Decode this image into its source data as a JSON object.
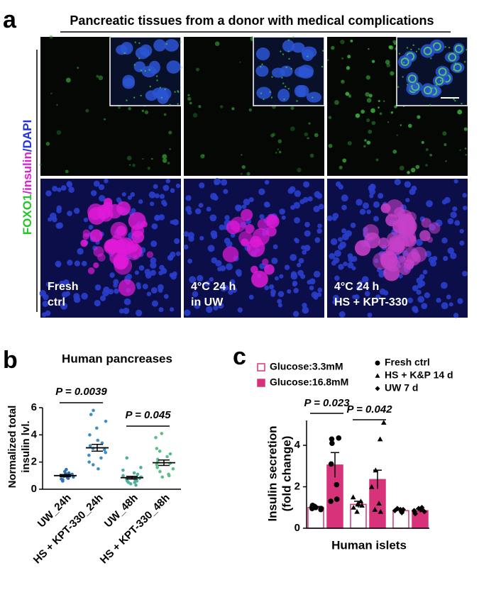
{
  "panel_a": {
    "letter": "a",
    "title": "Pancreatic tissues from a donor with medical complications",
    "stain_label": [
      "FOXO1",
      "/insulin",
      "/DAPI"
    ],
    "image_labels": [
      [
        "Fresh",
        "ctrl"
      ],
      [
        "4°C 24 h",
        "in UW"
      ],
      [
        "4°C 24 h",
        "HS + KPT-330"
      ]
    ]
  },
  "chart_data": [
    {
      "type": "dot",
      "panel": "b",
      "title": "Human pancreases",
      "y_label": [
        "Normalized total",
        "insulin lvl."
      ],
      "categories": [
        "UW_24h",
        "HS + KPT-330_24h",
        "UW_48h",
        "HS + KPT-330_48h"
      ],
      "colors": [
        "#2f6db5",
        "#3d8fc6",
        "#4fb0a0",
        "#5cbf8a"
      ],
      "points": [
        [
          0.6,
          0.7,
          0.8,
          0.85,
          0.9,
          0.95,
          1.0,
          1.0,
          1.05,
          1.1,
          1.15,
          1.2,
          1.3,
          1.45,
          0.75,
          0.9
        ],
        [
          5.8,
          5.5,
          5.0,
          4.5,
          4.0,
          3.6,
          3.4,
          3.2,
          3.0,
          2.9,
          2.7,
          2.5,
          2.3,
          2.0,
          1.8,
          1.5
        ],
        [
          0.3,
          0.4,
          0.5,
          0.6,
          0.7,
          0.75,
          0.8,
          0.9,
          1.0,
          1.1,
          1.2,
          1.4,
          1.6,
          2.3,
          0.6,
          0.5
        ],
        [
          4.1,
          3.8,
          3.0,
          2.8,
          2.6,
          2.4,
          2.2,
          2.0,
          1.9,
          1.8,
          1.6,
          1.5,
          1.3,
          1.1,
          0.9,
          1.0
        ]
      ],
      "means": [
        1.0,
        3.05,
        0.85,
        1.95
      ],
      "errors": [
        0.08,
        0.25,
        0.1,
        0.2
      ],
      "annotations": [
        "P = 0.0039",
        "P = 0.045"
      ],
      "ylim": [
        0,
        6
      ],
      "yticks": [
        0,
        2,
        4,
        6
      ]
    },
    {
      "type": "bar",
      "panel": "c",
      "y_label": [
        "Insulin secretion",
        "(fold change)"
      ],
      "x_label": "Human islets",
      "groups": [
        "Fresh ctrl",
        "HS + K&P 14 d",
        "UW 7 d"
      ],
      "markers": [
        "circle",
        "triangle",
        "diamond"
      ],
      "series": [
        {
          "name": "Glucose:3.3mM",
          "color": "#d6337a",
          "filled": false,
          "values": [
            1.0,
            1.15,
            0.85
          ],
          "errors": [
            0.05,
            0.15,
            0.05
          ],
          "points": [
            [
              1.0,
              0.95,
              1.05,
              0.9,
              1.0,
              1.1,
              0.95
            ],
            [
              1.5,
              1.2,
              1.0,
              0.8,
              1.3,
              1.1,
              1.15
            ],
            [
              0.9,
              0.8,
              0.85,
              0.75,
              0.9,
              0.8,
              0.95
            ]
          ]
        },
        {
          "name": "Glucose:16.8mM",
          "color": "#d6337a",
          "filled": true,
          "values": [
            3.05,
            2.35,
            0.85
          ],
          "errors": [
            0.6,
            0.45,
            0.08
          ],
          "points": [
            [
              4.3,
              4.35,
              4.1,
              3.1,
              2.1,
              1.4,
              1.3
            ],
            [
              5.1,
              4.3,
              2.8,
              2.0,
              1.2,
              0.9,
              0.8
            ],
            [
              1.0,
              0.9,
              0.8,
              0.7,
              0.85,
              0.95,
              0.8
            ]
          ]
        }
      ],
      "annotations": [
        "P = 0.023",
        "P = 0.042"
      ],
      "ylim": [
        0,
        5.2
      ],
      "yticks": [
        0,
        2,
        4
      ]
    }
  ]
}
